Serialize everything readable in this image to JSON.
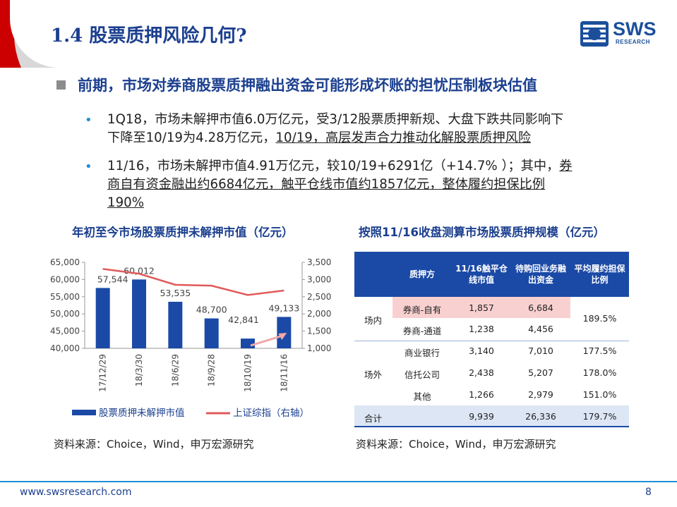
{
  "title": "1.4 股票质押风险几何?",
  "logo": {
    "word": "SWS",
    "sub": "RESEARCH"
  },
  "headline": "前期，市场对券商股票质押融出资金可能形成坏账的担忧压制板块估值",
  "bullets": [
    {
      "line1": "1Q18，市场未解押市值6.0万亿元，受3/12股票质押新规、大盘下跌共同影响下",
      "line2a": "下降至10/19为4.28万亿元，",
      "line2b": "10/19，高层发声合力推动化解股票质押风险"
    },
    {
      "line1a": "11/16，市场未解押市值4.91万亿元，较10/19+6291亿（+14.7% ）；其中，",
      "line1b": "券",
      "line2": "商自有资金融出约6684亿元，触平仓线市值约1857亿元，整体履约担保比例",
      "line3": "190%"
    }
  ],
  "left_chart_title": "年初至今市场股票质押未解押市值（亿元）",
  "right_table_title": "按照11/16收盘测算市场股票质押规模（亿元）",
  "colors": {
    "bar": "#1b4aa6",
    "line": "#e05a5a",
    "accent": "#1b3f8f",
    "header_red": "#cc0000"
  },
  "chart_data": {
    "type": "bar",
    "categories": [
      "17/12/29",
      "18/3/30",
      "18/6/29",
      "18/9/28",
      "18/10/19",
      "18/11/16"
    ],
    "series": [
      {
        "name": "股票质押未解押市值",
        "type": "bar",
        "axis": "left",
        "values": [
          57544,
          60012,
          53535,
          48700,
          42841,
          49133
        ],
        "labels": [
          "57,544",
          "60,012",
          "53,535",
          "48,700",
          "42,841",
          "49,133"
        ]
      },
      {
        "name": "上证综指（右轴）",
        "type": "line",
        "axis": "right",
        "values": [
          3307,
          3169,
          2847,
          2821,
          2550,
          2680
        ]
      }
    ],
    "y_left": {
      "min": 40000,
      "max": 65000,
      "ticks": [
        "40,000",
        "45,000",
        "50,000",
        "55,000",
        "60,000",
        "65,000"
      ]
    },
    "y_right": {
      "min": 1000,
      "max": 3500,
      "ticks": [
        "1,000",
        "1,500",
        "2,000",
        "2,500",
        "3,000",
        "3,500"
      ]
    },
    "legend_position": "bottom",
    "annotation_arrow": "18/10/19 → 18/11/16"
  },
  "chart_source": "资料来源：Choice，Wind，申万宏源研究",
  "table": {
    "headers": [
      "质押方",
      "11/16触平仓线市值",
      "待购回业务融出资金",
      "平均履约担保比例"
    ],
    "header_lines": [
      [
        "质押方"
      ],
      [
        "11/16触平仓",
        "线市值"
      ],
      [
        "待购回业务融",
        "出资金"
      ],
      [
        "平均履约担保",
        "比例"
      ]
    ],
    "groups": [
      {
        "name": "场内",
        "ratio": "189.5%",
        "rows": [
          {
            "party": "券商-自有",
            "trigger": "1,857",
            "funds": "6,684"
          },
          {
            "party": "券商-通道",
            "trigger": "1,238",
            "funds": "4,456"
          }
        ]
      },
      {
        "name": "场外",
        "rows": [
          {
            "party": "商业银行",
            "trigger": "3,140",
            "funds": "7,010",
            "ratio": "177.5%"
          },
          {
            "party": "信托公司",
            "trigger": "2,438",
            "funds": "5,207",
            "ratio": "178.0%"
          },
          {
            "party": "其他",
            "trigger": "1,266",
            "funds": "2,979",
            "ratio": "151.0%"
          }
        ]
      }
    ],
    "total": {
      "label": "合计",
      "trigger": "9,939",
      "funds": "26,336",
      "ratio": "179.7%"
    }
  },
  "table_source": "资料来源：Choice，Wind，申万宏源研究",
  "footer": {
    "url": "www.swsresearch.com",
    "page": "8"
  }
}
